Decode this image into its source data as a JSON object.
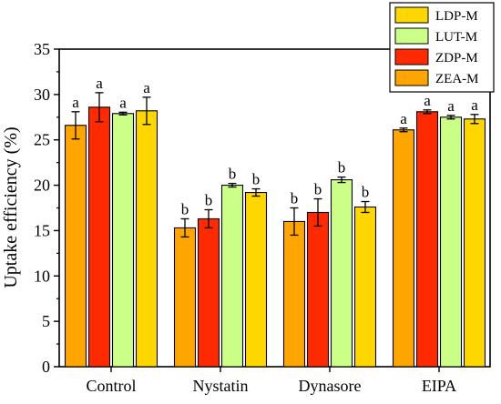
{
  "chart_data": {
    "type": "bar",
    "ylabel": "Uptake efficiency (%)",
    "xlabel": "",
    "title": "",
    "ylim": [
      0,
      35
    ],
    "yticks": [
      "0",
      "5",
      "10",
      "15",
      "20",
      "25",
      "30",
      "35"
    ],
    "categories": [
      "Control",
      "Nystatin",
      "Dynasore",
      "EIPA"
    ],
    "legend_position": "top-right",
    "legend": [
      {
        "name": "LDP-M",
        "color": "#ffd700"
      },
      {
        "name": "LUT-M",
        "color": "#ccff88"
      },
      {
        "name": "ZDP-M",
        "color": "#ff2a00"
      },
      {
        "name": "ZEA-M",
        "color": "#ffa500"
      }
    ],
    "series": [
      {
        "name": "ZEA-M",
        "color": "#ffa500",
        "values": [
          26.6,
          15.3,
          16.0,
          26.1
        ],
        "errors": [
          1.5,
          1.0,
          1.5,
          0.2
        ],
        "labels": [
          "a",
          "b",
          "b",
          "a"
        ]
      },
      {
        "name": "ZDP-M",
        "color": "#ff2a00",
        "values": [
          28.6,
          16.3,
          17.0,
          28.1
        ],
        "errors": [
          1.6,
          1.0,
          1.5,
          0.2
        ],
        "labels": [
          "a",
          "b",
          "b",
          "a"
        ]
      },
      {
        "name": "LUT-M",
        "color": "#ccff88",
        "values": [
          27.9,
          20.0,
          20.6,
          27.5
        ],
        "errors": [
          0.15,
          0.2,
          0.3,
          0.2
        ],
        "labels": [
          "a",
          "b",
          "b",
          "a"
        ]
      },
      {
        "name": "LDP-M",
        "color": "#ffd700",
        "values": [
          28.2,
          19.2,
          17.6,
          27.3
        ],
        "errors": [
          1.5,
          0.4,
          0.6,
          0.5
        ],
        "labels": [
          "a",
          "b",
          "b",
          "a"
        ]
      }
    ]
  }
}
